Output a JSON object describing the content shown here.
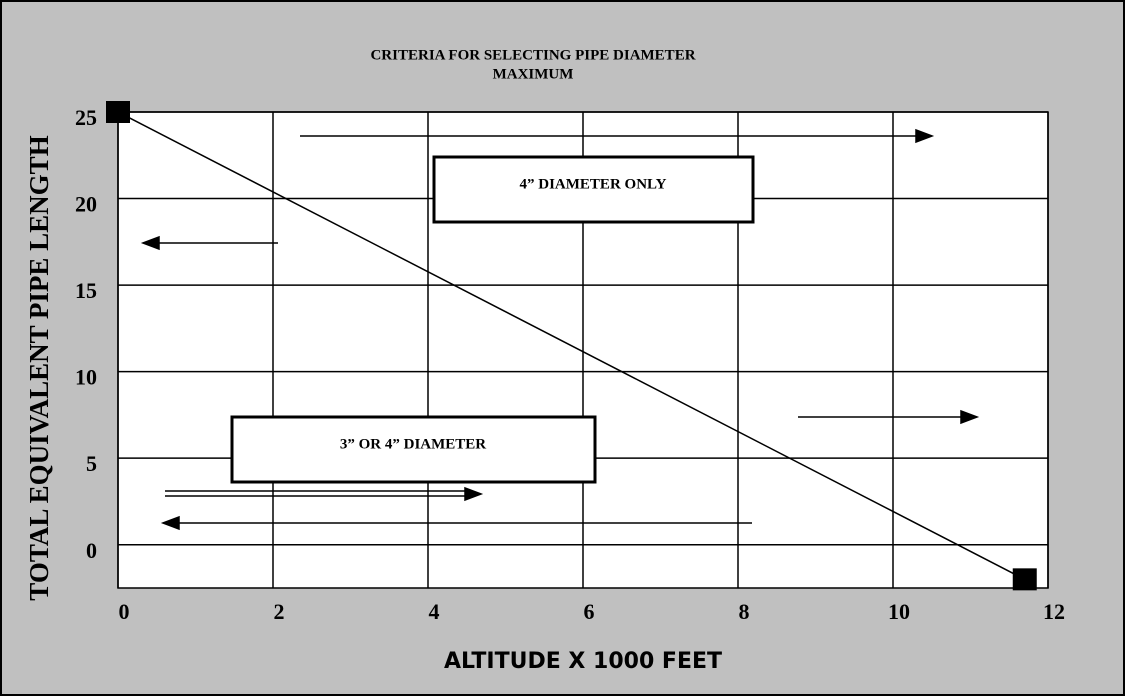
{
  "chart_data": {
    "type": "line",
    "title": "CRITERIA FOR SELECTING PIPE DIAMETER",
    "subtitle": "MAXIMUM",
    "x_label": "ALTITUDE X 1000 FEET",
    "y_label": "TOTAL EQUIVALENT PIPE LENGTH",
    "annotations": [
      "4” DIAMETER ONLY",
      "3” OR 4” DIAMETER"
    ],
    "x": [
      0,
      11.7
    ],
    "series": [
      {
        "name": null,
        "color": "#000000",
        "values": [
          25,
          -2
        ]
      }
    ],
    "xlim": [
      0,
      12
    ],
    "xticks": [
      0,
      2,
      4,
      6,
      8,
      10,
      12
    ],
    "ylim": [
      -2.5,
      25
    ],
    "yticks": [
      0,
      5,
      10,
      15,
      20,
      25
    ],
    "grid": true
  }
}
